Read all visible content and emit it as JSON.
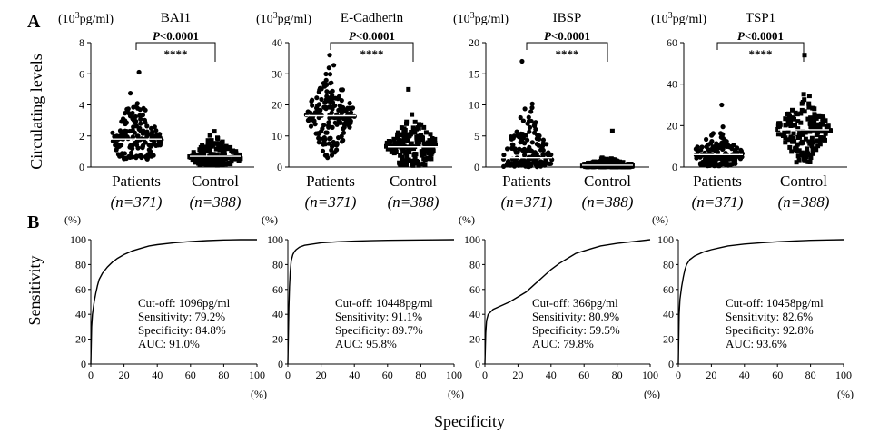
{
  "panel_labels": {
    "a": "A",
    "b": "B"
  },
  "ylabel_a": "Circulating levels",
  "ylabel_b": "Sensitivity",
  "xlabel_b": "Specificity",
  "pct_unit": "(%)",
  "p_text": "<0.0001",
  "p_prefix": "P",
  "sig_stars": "****",
  "chart_data": [
    {
      "type": "scatter",
      "title": "BAI1",
      "unit": "(10",
      "unit_sup": "3",
      "unit_tail": "pg/ml)",
      "ylim": [
        0,
        8
      ],
      "yticks": [
        "0",
        "2",
        "4",
        "6",
        "8"
      ],
      "groups": [
        {
          "name": "Patients",
          "n": "(n=371)",
          "marker": "circle",
          "median": 1.8,
          "min": 0.5,
          "max": 6.1,
          "spread": 1.1
        },
        {
          "name": "Control",
          "n": "(n=388)",
          "marker": "square",
          "median": 0.7,
          "min": 0.1,
          "max": 2.3,
          "spread": 0.5
        }
      ]
    },
    {
      "type": "scatter",
      "title": "E-Cadherin",
      "unit": "(10",
      "unit_sup": "3",
      "unit_tail": "pg/ml)",
      "ylim": [
        0,
        40
      ],
      "yticks": [
        "0",
        "10",
        "20",
        "30",
        "40"
      ],
      "groups": [
        {
          "name": "Patients",
          "n": "(n=371)",
          "marker": "circle",
          "median": 16.5,
          "min": 3,
          "max": 36,
          "spread": 6
        },
        {
          "name": "Control",
          "n": "(n=388)",
          "marker": "square",
          "median": 6.5,
          "min": 0.5,
          "max": 25,
          "spread": 4
        }
      ]
    },
    {
      "type": "scatter",
      "title": "IBSP",
      "unit": "(10",
      "unit_sup": "3",
      "unit_tail": "pg/ml)",
      "ylim": [
        0,
        20
      ],
      "yticks": [
        "0",
        "5",
        "10",
        "15",
        "20"
      ],
      "groups": [
        {
          "name": "Patients",
          "n": "(n=371)",
          "marker": "circle",
          "median": 1.5,
          "min": 0,
          "max": 17,
          "spread": 3.2
        },
        {
          "name": "Control",
          "n": "(n=388)",
          "marker": "square",
          "median": 0.3,
          "min": 0,
          "max": 5.8,
          "spread": 0.4
        }
      ]
    },
    {
      "type": "scatter",
      "title": "TSP1",
      "unit": "(10",
      "unit_sup": "3",
      "unit_tail": "pg/ml)",
      "ylim": [
        0,
        60
      ],
      "yticks": [
        "0",
        "20",
        "40",
        "60"
      ],
      "groups": [
        {
          "name": "Patients",
          "n": "(n=371)",
          "marker": "circle",
          "median": 6,
          "min": 0.5,
          "max": 30,
          "spread": 5
        },
        {
          "name": "Control",
          "n": "(n=388)",
          "marker": "square",
          "median": 18,
          "min": 2,
          "max": 54,
          "spread": 7
        }
      ]
    },
    {
      "type": "line",
      "title": "",
      "xlim": [
        0,
        100
      ],
      "ylim": [
        0,
        100
      ],
      "xticks": [
        "0",
        "20",
        "40",
        "60",
        "80",
        "100"
      ],
      "yticks": [
        "0",
        "20",
        "40",
        "60",
        "80",
        "100"
      ],
      "stats": [
        "Cut-off:  1096pg/ml",
        "Sensitivity: 79.2%",
        "Specificity: 84.8%",
        "AUC: 91.0%"
      ],
      "x": [
        0,
        0.5,
        1,
        2,
        3,
        4,
        5,
        7,
        10,
        13,
        16,
        20,
        25,
        30,
        35,
        40,
        50,
        60,
        70,
        80,
        90,
        100
      ],
      "y": [
        0,
        30,
        40,
        50,
        57,
        63,
        68,
        73,
        78,
        82,
        85,
        88,
        91,
        93,
        95,
        96,
        97.5,
        98.5,
        99.3,
        99.8,
        100,
        100
      ]
    },
    {
      "type": "line",
      "title": "",
      "xlim": [
        0,
        100
      ],
      "ylim": [
        0,
        100
      ],
      "xticks": [
        "0",
        "20",
        "40",
        "60",
        "80",
        "100"
      ],
      "yticks": [
        "0",
        "20",
        "40",
        "60",
        "80",
        "100"
      ],
      "stats": [
        "Cut-off:  10448pg/ml",
        "Sensitivity: 91.1%",
        "Specificity: 89.7%",
        "AUC: 95.8%"
      ],
      "x": [
        0,
        0.3,
        0.6,
        1,
        1.5,
        2,
        3,
        4,
        5,
        7,
        10,
        15,
        20,
        30,
        40,
        50,
        60,
        80,
        100
      ],
      "y": [
        0,
        20,
        45,
        62,
        75,
        83,
        88,
        90.5,
        92,
        94,
        95.5,
        96.5,
        97.5,
        98.3,
        98.8,
        99.2,
        99.5,
        99.8,
        100
      ]
    },
    {
      "type": "line",
      "title": "",
      "xlim": [
        0,
        100
      ],
      "ylim": [
        0,
        100
      ],
      "xticks": [
        "0",
        "20",
        "40",
        "60",
        "80",
        "100"
      ],
      "yticks": [
        "0",
        "20",
        "40",
        "60",
        "80",
        "100"
      ],
      "stats": [
        "Cut-off:  366pg/ml",
        "Sensitivity: 80.9%",
        "Specificity: 59.5%",
        "AUC: 79.8%"
      ],
      "x": [
        0,
        0.5,
        1,
        2,
        5,
        10,
        15,
        20,
        25,
        30,
        35,
        40,
        45,
        50,
        55,
        60,
        65,
        70,
        80,
        90,
        100
      ],
      "y": [
        0,
        25,
        35,
        40,
        44,
        47,
        50,
        54,
        58,
        64,
        70,
        76,
        80.9,
        85,
        89,
        91,
        93,
        95,
        97,
        98.5,
        100
      ]
    },
    {
      "type": "line",
      "title": "",
      "xlim": [
        0,
        100
      ],
      "ylim": [
        0,
        100
      ],
      "xticks": [
        "0",
        "20",
        "40",
        "60",
        "80",
        "100"
      ],
      "yticks": [
        "0",
        "20",
        "40",
        "60",
        "80",
        "100"
      ],
      "stats": [
        "Cut-off:  10458pg/ml",
        "Sensitivity: 82.6%",
        "Specificity: 92.8%",
        "AUC: 93.6%"
      ],
      "x": [
        0,
        0.5,
        1,
        2,
        3,
        4,
        5,
        7,
        10,
        15,
        20,
        25,
        30,
        40,
        50,
        60,
        70,
        80,
        90,
        100
      ],
      "y": [
        0,
        40,
        52,
        62,
        70,
        76,
        80,
        84,
        87,
        90,
        92,
        93.5,
        95,
        96.5,
        97.5,
        98.3,
        99,
        99.5,
        99.8,
        100
      ]
    }
  ]
}
